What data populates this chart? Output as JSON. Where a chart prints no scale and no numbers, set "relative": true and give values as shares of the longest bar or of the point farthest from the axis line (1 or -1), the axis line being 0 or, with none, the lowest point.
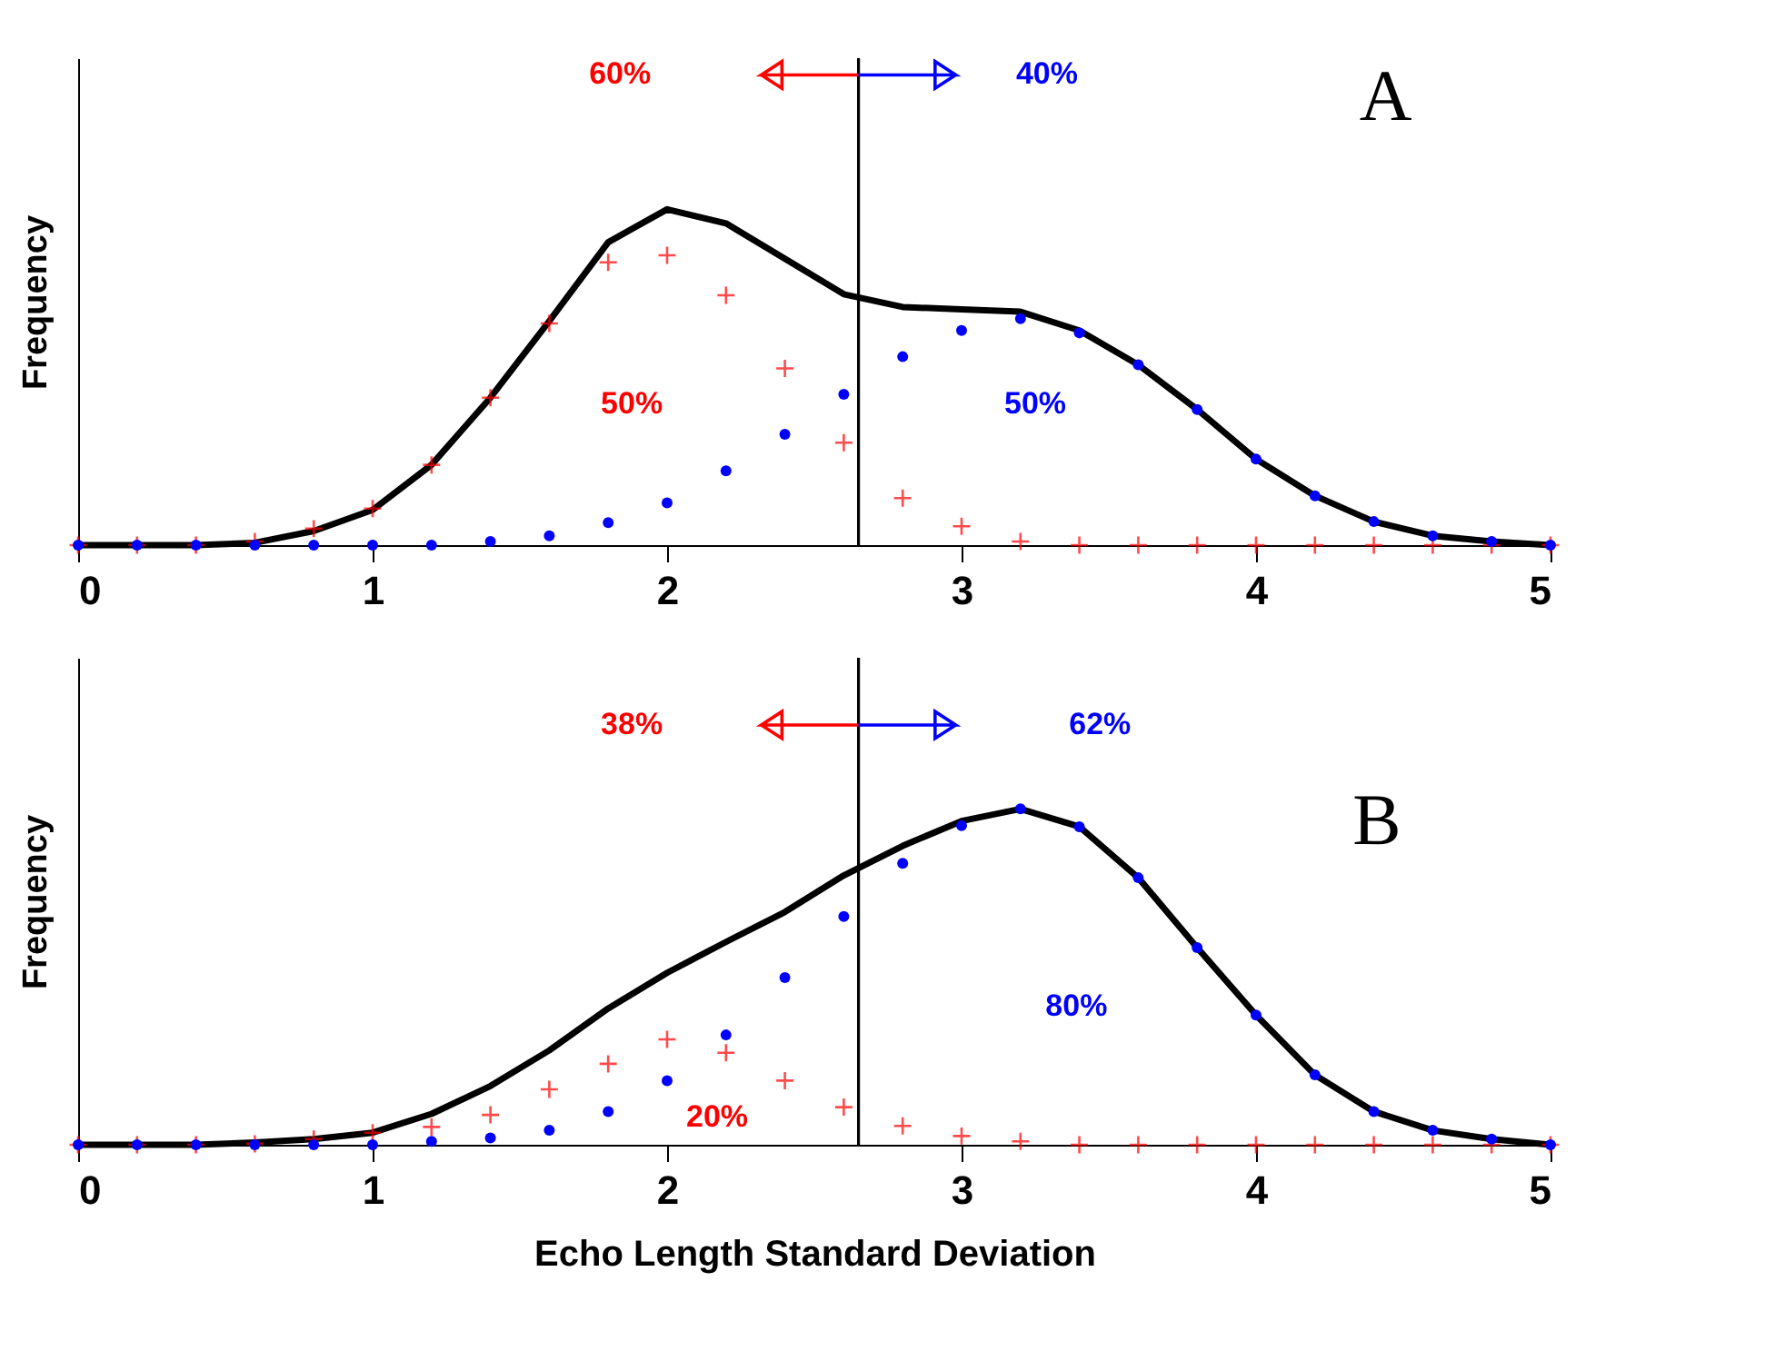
{
  "chart_data": [
    {
      "type": "line",
      "relative": true,
      "ylabel": "Frequency",
      "xlim": [
        0,
        5
      ],
      "xticks": [
        0,
        1,
        2,
        3,
        4,
        5
      ],
      "tick_labels": "x",
      "x": [
        0,
        0.2,
        0.4,
        0.6,
        0.8,
        1.0,
        1.2,
        1.4,
        1.6,
        1.8,
        2.0,
        2.2,
        2.4,
        2.6,
        2.8,
        3.0,
        3.2,
        3.4,
        3.6,
        3.8,
        4.0,
        4.2,
        4.4,
        4.6,
        4.8,
        5.0
      ],
      "series": [
        {
          "marker": "none",
          "line_style": "solid",
          "color": "#000000",
          "values": [
            0,
            0,
            0,
            0.007,
            0.042,
            0.105,
            0.239,
            0.439,
            0.667,
            0.902,
            1,
            0.958,
            0.853,
            0.747,
            0.709,
            0.702,
            0.695,
            0.639,
            0.537,
            0.404,
            0.256,
            0.147,
            0.07,
            0.028,
            0.011,
            0
          ]
        },
        {
          "type": "scatter",
          "marker": "cross",
          "color": "#ff0000",
          "values": [
            0,
            0,
            0,
            0.011,
            0.049,
            0.109,
            0.239,
            0.439,
            0.66,
            0.842,
            0.863,
            0.744,
            0.526,
            0.305,
            0.14,
            0.056,
            0.011,
            0,
            0,
            0,
            0,
            0,
            0,
            0,
            0,
            0
          ]
        },
        {
          "type": "scatter",
          "marker": "circle",
          "color": "#0000ff",
          "values": [
            0,
            0,
            0,
            0,
            0,
            0,
            0,
            0.011,
            0.028,
            0.067,
            0.126,
            0.221,
            0.33,
            0.449,
            0.561,
            0.639,
            0.674,
            0.632,
            0.537,
            0.404,
            0.256,
            0.147,
            0.07,
            0.028,
            0.011,
            0
          ]
        }
      ],
      "ref_lines": [
        {
          "axis": "x",
          "value": 2.65,
          "color": "#000000"
        }
      ],
      "annotations": [
        "60%",
        "40%",
        "50%",
        "50%",
        "A"
      ]
    },
    {
      "type": "line",
      "relative": true,
      "ylabel": "Frequency",
      "xlabel": "Echo Length Standard Deviation",
      "xlim": [
        0,
        5
      ],
      "xticks": [
        0,
        1,
        2,
        3,
        4,
        5
      ],
      "tick_labels": "x",
      "x": [
        0,
        0.2,
        0.4,
        0.6,
        0.8,
        1.0,
        1.2,
        1.4,
        1.6,
        1.8,
        2.0,
        2.2,
        2.4,
        2.6,
        2.8,
        3.0,
        3.2,
        3.4,
        3.6,
        3.8,
        4.0,
        4.2,
        4.4,
        4.6,
        4.8,
        5.0
      ],
      "series": [
        {
          "marker": "none",
          "line_style": "solid",
          "color": "#000000",
          "values": [
            0,
            0,
            0,
            0.007,
            0.017,
            0.036,
            0.092,
            0.175,
            0.281,
            0.406,
            0.512,
            0.604,
            0.693,
            0.802,
            0.89,
            0.964,
            1,
            0.947,
            0.795,
            0.587,
            0.386,
            0.208,
            0.099,
            0.043,
            0.017,
            0
          ]
        },
        {
          "type": "scatter",
          "marker": "cross",
          "color": "#ff0000",
          "values": [
            0,
            0,
            0,
            0.003,
            0.017,
            0.036,
            0.053,
            0.089,
            0.165,
            0.241,
            0.314,
            0.274,
            0.191,
            0.112,
            0.056,
            0.026,
            0.01,
            0,
            0,
            0,
            0,
            0,
            0,
            0,
            0,
            0
          ]
        },
        {
          "type": "scatter",
          "marker": "circle",
          "color": "#0000ff",
          "values": [
            0,
            0,
            0,
            0,
            0,
            0,
            0.01,
            0.02,
            0.043,
            0.099,
            0.191,
            0.327,
            0.498,
            0.68,
            0.838,
            0.95,
            1,
            0.947,
            0.795,
            0.587,
            0.386,
            0.208,
            0.099,
            0.043,
            0.017,
            0
          ]
        }
      ],
      "ref_lines": [
        {
          "axis": "x",
          "value": 2.65,
          "color": "#000000"
        }
      ],
      "annotations": [
        "38%",
        "62%",
        "80%",
        "20%",
        "B"
      ]
    }
  ]
}
